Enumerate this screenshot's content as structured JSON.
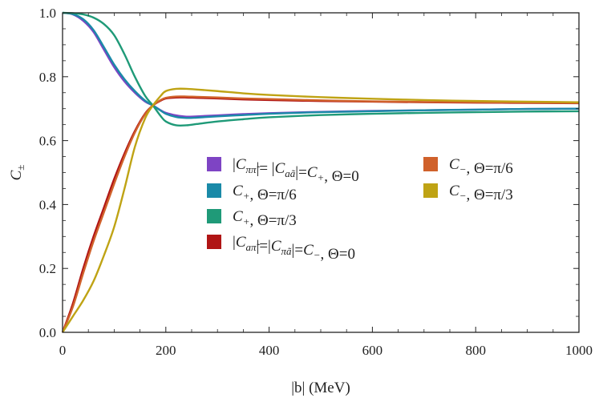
{
  "chart_data": {
    "type": "line",
    "title": "",
    "xlabel": "|b| (MeV)",
    "ylabel": "C±",
    "xlim": [
      0,
      1000
    ],
    "ylim": [
      0,
      1.0
    ],
    "grid": false,
    "x_ticks": [
      "0",
      "200",
      "400",
      "600",
      "800",
      "1000"
    ],
    "y_ticks": [
      "0.0",
      "0.2",
      "0.4",
      "0.6",
      "0.8",
      "1.0"
    ],
    "legend_placement": "center-right",
    "series": [
      {
        "name": "|Cππ̃|= |Caã|=C+, Θ=0",
        "label": "|C_{ππ̃}|= |C_{aã}|=C_+, Θ=0",
        "color": "#7e44c4",
        "x": [
          0,
          20,
          40,
          60,
          80,
          100,
          120,
          140,
          160,
          175,
          190,
          200,
          220,
          240,
          260,
          300,
          350,
          400,
          500,
          600,
          700,
          800,
          900,
          1000
        ],
        "y": [
          1.0,
          0.995,
          0.975,
          0.94,
          0.885,
          0.83,
          0.785,
          0.75,
          0.722,
          0.71,
          0.695,
          0.687,
          0.679,
          0.675,
          0.676,
          0.679,
          0.683,
          0.686,
          0.69,
          0.693,
          0.695,
          0.697,
          0.699,
          0.7
        ]
      },
      {
        "name": "C+, Θ=π/6",
        "label": "C_+, Θ=π/6",
        "color": "#1a8aa8",
        "x": [
          0,
          20,
          40,
          60,
          80,
          100,
          120,
          140,
          160,
          175,
          190,
          200,
          220,
          240,
          260,
          300,
          350,
          400,
          500,
          600,
          700,
          800,
          900,
          1000
        ],
        "y": [
          1.0,
          0.996,
          0.98,
          0.946,
          0.893,
          0.838,
          0.792,
          0.755,
          0.725,
          0.71,
          0.694,
          0.684,
          0.674,
          0.671,
          0.672,
          0.676,
          0.68,
          0.684,
          0.689,
          0.692,
          0.695,
          0.697,
          0.699,
          0.7
        ]
      },
      {
        "name": "C+, Θ=π/3",
        "label": "C_+, Θ=π/3",
        "color": "#1f9a78",
        "x": [
          0,
          20,
          40,
          60,
          80,
          100,
          120,
          140,
          160,
          175,
          190,
          200,
          220,
          240,
          260,
          300,
          350,
          400,
          500,
          600,
          700,
          800,
          900,
          1000
        ],
        "y": [
          1.0,
          0.999,
          0.995,
          0.985,
          0.965,
          0.93,
          0.87,
          0.8,
          0.74,
          0.71,
          0.677,
          0.66,
          0.648,
          0.648,
          0.652,
          0.66,
          0.667,
          0.673,
          0.68,
          0.684,
          0.687,
          0.689,
          0.691,
          0.692
        ]
      },
      {
        "name": "|Caπ̃|=|Cπã|=C−, Θ=0",
        "label": "|C_{aπ̃}|=|C_{πã}|=C_−, Θ=0",
        "color": "#b01515",
        "x": [
          0,
          20,
          40,
          60,
          80,
          100,
          120,
          140,
          160,
          175,
          190,
          200,
          220,
          240,
          260,
          300,
          350,
          400,
          500,
          600,
          700,
          800,
          900,
          1000
        ],
        "y": [
          0.0,
          0.09,
          0.2,
          0.3,
          0.39,
          0.48,
          0.56,
          0.63,
          0.685,
          0.71,
          0.725,
          0.732,
          0.735,
          0.735,
          0.734,
          0.732,
          0.729,
          0.727,
          0.724,
          0.722,
          0.72,
          0.719,
          0.718,
          0.717
        ]
      },
      {
        "name": "C−, Θ=π/6",
        "label": "C_−, Θ=π/6",
        "color": "#d0612b",
        "x": [
          0,
          20,
          40,
          60,
          80,
          100,
          120,
          140,
          160,
          175,
          190,
          200,
          220,
          240,
          260,
          300,
          350,
          400,
          500,
          600,
          700,
          800,
          900,
          1000
        ],
        "y": [
          0.0,
          0.08,
          0.185,
          0.285,
          0.375,
          0.465,
          0.55,
          0.625,
          0.683,
          0.71,
          0.727,
          0.734,
          0.738,
          0.738,
          0.737,
          0.735,
          0.732,
          0.73,
          0.726,
          0.723,
          0.721,
          0.72,
          0.719,
          0.718
        ]
      },
      {
        "name": "C−, Θ=π/3",
        "label": "C_−, Θ=π/3",
        "color": "#bfa314",
        "x": [
          0,
          20,
          40,
          60,
          80,
          100,
          120,
          140,
          160,
          175,
          190,
          200,
          220,
          240,
          260,
          300,
          350,
          400,
          500,
          600,
          700,
          800,
          900,
          1000
        ],
        "y": [
          0.0,
          0.05,
          0.1,
          0.16,
          0.24,
          0.33,
          0.45,
          0.58,
          0.67,
          0.71,
          0.74,
          0.755,
          0.762,
          0.762,
          0.76,
          0.755,
          0.748,
          0.743,
          0.736,
          0.731,
          0.727,
          0.724,
          0.722,
          0.72
        ]
      }
    ]
  }
}
